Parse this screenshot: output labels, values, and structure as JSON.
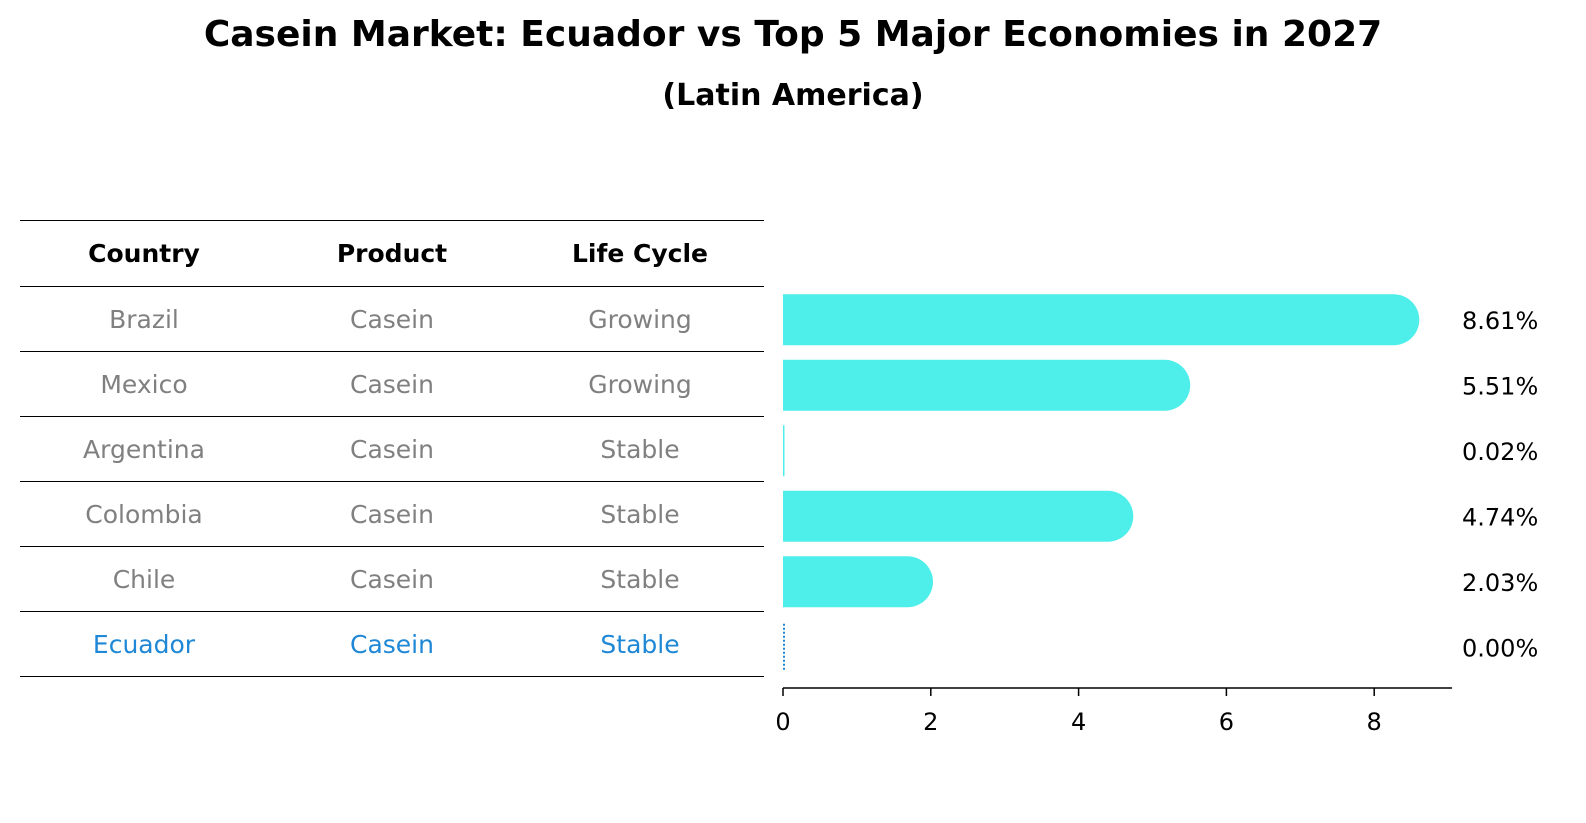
{
  "title": "Casein Market: Ecuador vs Top 5 Major Economies in 2027",
  "subtitle": "(Latin America)",
  "table": {
    "headers": [
      "Country",
      "Product",
      "Life Cycle"
    ],
    "rows": [
      {
        "country": "Brazil",
        "product": "Casein",
        "life_cycle": "Growing",
        "highlight": false
      },
      {
        "country": "Mexico",
        "product": "Casein",
        "life_cycle": "Growing",
        "highlight": false
      },
      {
        "country": "Argentina",
        "product": "Casein",
        "life_cycle": "Stable",
        "highlight": false
      },
      {
        "country": "Colombia",
        "product": "Casein",
        "life_cycle": "Stable",
        "highlight": false
      },
      {
        "country": "Chile",
        "product": "Casein",
        "life_cycle": "Stable",
        "highlight": false
      },
      {
        "country": "Ecuador",
        "product": "Casein",
        "life_cycle": "Stable",
        "highlight": true
      }
    ]
  },
  "colors": {
    "bar": "#4eeeea",
    "highlight_text": "#1e87d6",
    "normal_text": "#808080"
  },
  "chart_data": {
    "type": "bar",
    "orientation": "horizontal",
    "categories": [
      "Brazil",
      "Mexico",
      "Argentina",
      "Colombia",
      "Chile",
      "Ecuador"
    ],
    "values": [
      8.61,
      5.51,
      0.02,
      4.74,
      2.03,
      0.0
    ],
    "value_labels": [
      "8.61%",
      "5.51%",
      "0.02%",
      "4.74%",
      "2.03%",
      "0.00%"
    ],
    "xlim": [
      0,
      9.1
    ],
    "xticks": [
      0,
      2,
      4,
      6,
      8
    ],
    "xlabel": "",
    "ylabel": "",
    "grid": false
  }
}
